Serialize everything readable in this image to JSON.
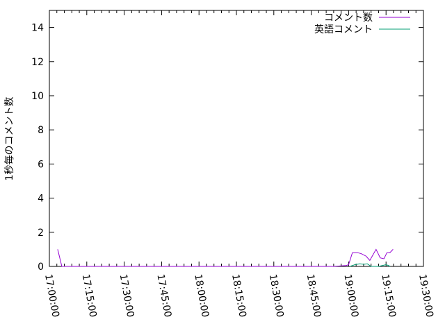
{
  "chart_data": {
    "type": "line",
    "title": "",
    "xlabel": "",
    "ylabel": "1秒毎のコメント数",
    "xlim": [
      "17:00:00",
      "19:30:00"
    ],
    "ylim": [
      0,
      15
    ],
    "xticks": [
      "17:00:00",
      "17:15:00",
      "17:30:00",
      "17:45:00",
      "18:00:00",
      "18:15:00",
      "18:30:00",
      "18:45:00",
      "19:00:00",
      "19:15:00",
      "19:30:00"
    ],
    "yticks": [
      "0",
      "2",
      "4",
      "6",
      "8",
      "10",
      "12",
      "14"
    ],
    "grid": false,
    "legend": "top-right",
    "series": [
      {
        "name": "コメント数",
        "color": "#9400d3",
        "points": [
          [
            "17:03:20",
            1.0
          ],
          [
            "17:05:00",
            0
          ],
          [
            "18:54:00",
            0
          ],
          [
            "18:59:00",
            0.05
          ],
          [
            "19:00:00",
            0.1
          ],
          [
            "19:01:30",
            0.8
          ],
          [
            "19:03:40",
            0.8
          ],
          [
            "19:05:00",
            0.75
          ],
          [
            "19:07:00",
            0.6
          ],
          [
            "19:08:30",
            0.35
          ],
          [
            "19:11:00",
            1.0
          ],
          [
            "19:12:40",
            0.5
          ],
          [
            "19:14:10",
            0.45
          ],
          [
            "19:15:20",
            0.8
          ],
          [
            "19:16:30",
            0.8
          ],
          [
            "19:17:50",
            1.0
          ]
        ]
      },
      {
        "name": "英語コメント",
        "color": "#009e73",
        "points": [
          [
            "19:00:30",
            0
          ],
          [
            "19:02:30",
            0.1
          ],
          [
            "19:04:30",
            0.15
          ],
          [
            "19:06:00",
            0.12
          ],
          [
            "19:07:30",
            0.15
          ],
          [
            "19:09:00",
            0
          ],
          [
            "19:12:00",
            0
          ],
          [
            "19:13:30",
            0.05
          ],
          [
            "19:15:00",
            0.1
          ],
          [
            "19:16:00",
            0.05
          ],
          [
            "19:16:40",
            0
          ]
        ]
      }
    ]
  }
}
